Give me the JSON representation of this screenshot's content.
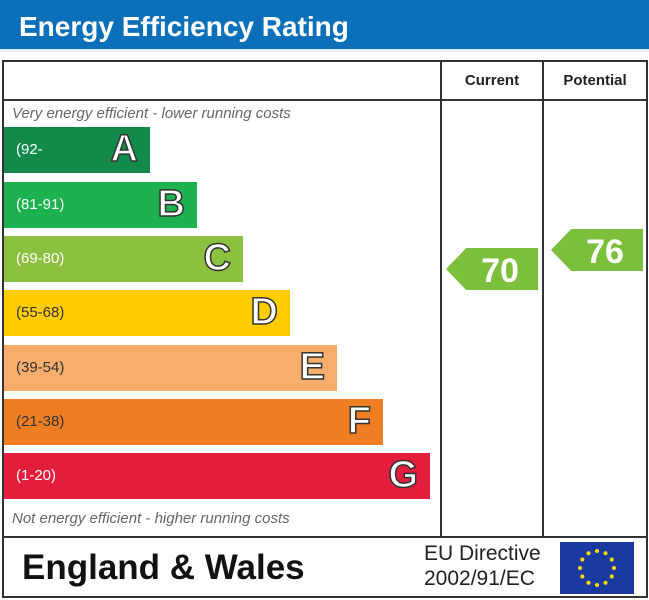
{
  "header": {
    "title": "Energy Efficiency Rating"
  },
  "columns": {
    "current": "Current",
    "potential": "Potential"
  },
  "notes": {
    "top": "Very energy efficient - lower running costs",
    "bottom": "Not energy efficient - higher running costs"
  },
  "footer": {
    "region": "England & Wales",
    "directive_line1": "EU Directive",
    "directive_line2": "2002/91/EC",
    "flag_icon": "eu-flag-icon"
  },
  "chart_data": {
    "type": "bar",
    "categories": [
      "A",
      "B",
      "C",
      "D",
      "E",
      "F",
      "G"
    ],
    "ranges": [
      "(92-",
      "(81-91)",
      "(69-80)",
      "(55-68)",
      "(39-54)",
      "(21-38)",
      "(1-20)"
    ],
    "colors": [
      "#138a4a",
      "#1db150",
      "#8cc03f",
      "#ffcc00",
      "#f7ad6b",
      "#ef7d22",
      "#e31d3c"
    ],
    "current": {
      "value": 70,
      "band": "C",
      "color": "#7bbf3c"
    },
    "potential": {
      "value": 76,
      "band": "C",
      "color": "#7bbf3c"
    }
  }
}
